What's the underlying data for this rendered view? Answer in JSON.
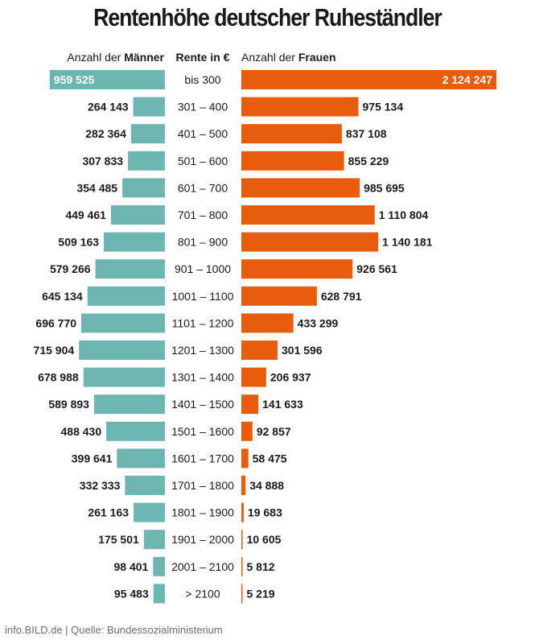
{
  "chart_data": {
    "type": "bar",
    "title": "Rentenhöhe deutscher Ruheständler",
    "header": {
      "left_prefix": "Anzahl der ",
      "left_bold": "Männer",
      "center": "Rente in €",
      "right_prefix": "Anzahl der ",
      "right_bold": "Frauen"
    },
    "categories": [
      "bis 300",
      "301 – 400",
      "401 – 500",
      "501 – 600",
      "601 – 700",
      "701 – 800",
      "801 – 900",
      "901 – 1000",
      "1001 – 1100",
      "1101 – 1200",
      "1201 – 1300",
      "1301 – 1400",
      "1401 – 1500",
      "1501 – 1600",
      "1601 – 1700",
      "1701 – 1800",
      "1801 – 1900",
      "1901 – 2000",
      "2001 – 2100",
      "> 2100"
    ],
    "series": [
      {
        "name": "Männer",
        "color": "#6db5b0",
        "values": [
          959525,
          264143,
          282364,
          307833,
          354485,
          449461,
          509163,
          579266,
          645134,
          696770,
          715904,
          678988,
          589893,
          488430,
          399641,
          332333,
          261163,
          175501,
          98401,
          95483
        ],
        "labels": [
          "959 525",
          "264 143",
          "282 364",
          "307 833",
          "354 485",
          "449 461",
          "509 163",
          "579 266",
          "645 134",
          "696 770",
          "715 904",
          "678 988",
          "589 893",
          "488 430",
          "399 641",
          "332 333",
          "261 163",
          "175 501",
          "98 401",
          "95 483"
        ]
      },
      {
        "name": "Frauen",
        "color": "#e95c0c",
        "values": [
          2124247,
          975134,
          837108,
          855229,
          985695,
          1110804,
          1140181,
          926561,
          628791,
          433299,
          301596,
          206937,
          141633,
          92857,
          58475,
          34888,
          19683,
          10605,
          5812,
          5219
        ],
        "labels": [
          "2 124 247",
          "975 134",
          "837 108",
          "855 229",
          "985 695",
          "1 110 804",
          "1 140 181",
          "926 561",
          "628 791",
          "433 299",
          "301 596",
          "206 937",
          "141 633",
          "92 857",
          "58 475",
          "34 888",
          "19 683",
          "10 605",
          "5 812",
          "5 219"
        ]
      }
    ]
  },
  "footer": "info.BILD.de | Quelle: Bundessozialministerium"
}
